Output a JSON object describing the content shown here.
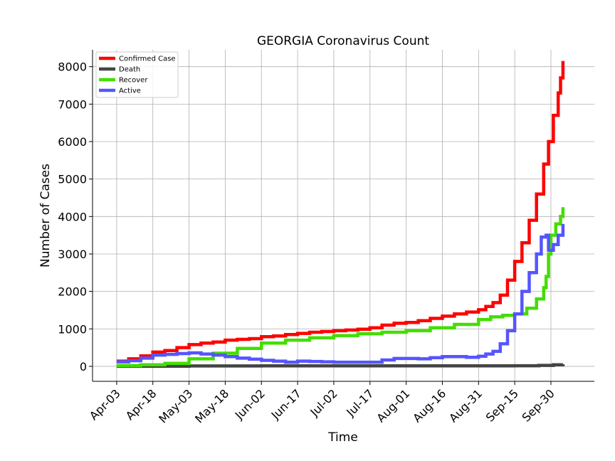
{
  "chart_data": {
    "type": "line",
    "title": "GEORGIA Coronavirus Count",
    "xlabel": "Time",
    "ylabel": "Number of Cases",
    "x_tick_labels": [
      "Apr-03",
      "Apr-18",
      "May-03",
      "May-18",
      "Jun-02",
      "Jun-17",
      "Jul-02",
      "Jul-17",
      "Aug-01",
      "Aug-16",
      "Aug-31",
      "Sep-15",
      "Sep-30"
    ],
    "y_ticks": [
      0,
      1000,
      2000,
      3000,
      4000,
      5000,
      6000,
      7000,
      8000
    ],
    "ylim": [
      -400,
      8450
    ],
    "xlim": [
      "2020-03-24",
      "2020-10-18"
    ],
    "grid": true,
    "legend_position": "top-left",
    "series": [
      {
        "name": "Confirmed Case",
        "color": "#ff0000",
        "points": [
          [
            "2020-04-03",
            140
          ],
          [
            "2020-04-08",
            200
          ],
          [
            "2020-04-13",
            280
          ],
          [
            "2020-04-18",
            380
          ],
          [
            "2020-04-23",
            420
          ],
          [
            "2020-04-28",
            500
          ],
          [
            "2020-05-03",
            580
          ],
          [
            "2020-05-08",
            620
          ],
          [
            "2020-05-13",
            650
          ],
          [
            "2020-05-18",
            700
          ],
          [
            "2020-05-23",
            720
          ],
          [
            "2020-05-28",
            740
          ],
          [
            "2020-06-02",
            790
          ],
          [
            "2020-06-07",
            810
          ],
          [
            "2020-06-12",
            850
          ],
          [
            "2020-06-17",
            880
          ],
          [
            "2020-06-22",
            910
          ],
          [
            "2020-06-27",
            930
          ],
          [
            "2020-07-02",
            950
          ],
          [
            "2020-07-07",
            970
          ],
          [
            "2020-07-12",
            990
          ],
          [
            "2020-07-17",
            1030
          ],
          [
            "2020-07-22",
            1100
          ],
          [
            "2020-07-27",
            1150
          ],
          [
            "2020-08-01",
            1170
          ],
          [
            "2020-08-06",
            1220
          ],
          [
            "2020-08-11",
            1280
          ],
          [
            "2020-08-16",
            1340
          ],
          [
            "2020-08-21",
            1400
          ],
          [
            "2020-08-26",
            1450
          ],
          [
            "2020-08-31",
            1510
          ],
          [
            "2020-09-03",
            1600
          ],
          [
            "2020-09-06",
            1700
          ],
          [
            "2020-09-09",
            1900
          ],
          [
            "2020-09-12",
            2300
          ],
          [
            "2020-09-15",
            2800
          ],
          [
            "2020-09-18",
            3300
          ],
          [
            "2020-09-21",
            3900
          ],
          [
            "2020-09-24",
            4600
          ],
          [
            "2020-09-27",
            5400
          ],
          [
            "2020-09-29",
            6000
          ],
          [
            "2020-10-01",
            6700
          ],
          [
            "2020-10-03",
            7300
          ],
          [
            "2020-10-04",
            7700
          ],
          [
            "2020-10-05",
            8150
          ]
        ]
      },
      {
        "name": "Death",
        "color": "#444444",
        "points": [
          [
            "2020-04-03",
            5
          ],
          [
            "2020-05-03",
            10
          ],
          [
            "2020-06-02",
            12
          ],
          [
            "2020-07-02",
            12
          ],
          [
            "2020-08-01",
            12
          ],
          [
            "2020-08-31",
            12
          ],
          [
            "2020-09-15",
            15
          ],
          [
            "2020-09-25",
            25
          ],
          [
            "2020-10-01",
            40
          ],
          [
            "2020-10-05",
            55
          ]
        ]
      },
      {
        "name": "Recover",
        "color": "#44dd00",
        "points": [
          [
            "2020-04-03",
            20
          ],
          [
            "2020-04-13",
            40
          ],
          [
            "2020-04-23",
            80
          ],
          [
            "2020-05-03",
            200
          ],
          [
            "2020-05-13",
            350
          ],
          [
            "2020-05-23",
            480
          ],
          [
            "2020-06-02",
            620
          ],
          [
            "2020-06-12",
            700
          ],
          [
            "2020-06-22",
            760
          ],
          [
            "2020-07-02",
            820
          ],
          [
            "2020-07-12",
            870
          ],
          [
            "2020-07-22",
            910
          ],
          [
            "2020-08-01",
            950
          ],
          [
            "2020-08-11",
            1030
          ],
          [
            "2020-08-21",
            1120
          ],
          [
            "2020-08-31",
            1250
          ],
          [
            "2020-09-05",
            1320
          ],
          [
            "2020-09-10",
            1360
          ],
          [
            "2020-09-15",
            1400
          ],
          [
            "2020-09-20",
            1550
          ],
          [
            "2020-09-24",
            1800
          ],
          [
            "2020-09-27",
            2100
          ],
          [
            "2020-09-28",
            2400
          ],
          [
            "2020-09-29",
            3000
          ],
          [
            "2020-09-30",
            3500
          ],
          [
            "2020-10-02",
            3800
          ],
          [
            "2020-10-04",
            4000
          ],
          [
            "2020-10-05",
            4250
          ]
        ]
      },
      {
        "name": "Active",
        "color": "#5555ff",
        "points": [
          [
            "2020-04-03",
            120
          ],
          [
            "2020-04-08",
            150
          ],
          [
            "2020-04-13",
            220
          ],
          [
            "2020-04-18",
            300
          ],
          [
            "2020-04-23",
            320
          ],
          [
            "2020-04-28",
            340
          ],
          [
            "2020-05-03",
            360
          ],
          [
            "2020-05-08",
            330
          ],
          [
            "2020-05-13",
            300
          ],
          [
            "2020-05-18",
            260
          ],
          [
            "2020-05-23",
            220
          ],
          [
            "2020-05-28",
            190
          ],
          [
            "2020-06-02",
            160
          ],
          [
            "2020-06-07",
            140
          ],
          [
            "2020-06-12",
            110
          ],
          [
            "2020-06-17",
            140
          ],
          [
            "2020-06-22",
            130
          ],
          [
            "2020-06-27",
            120
          ],
          [
            "2020-07-02",
            110
          ],
          [
            "2020-07-07",
            110
          ],
          [
            "2020-07-12",
            110
          ],
          [
            "2020-07-17",
            110
          ],
          [
            "2020-07-22",
            170
          ],
          [
            "2020-07-27",
            210
          ],
          [
            "2020-08-01",
            210
          ],
          [
            "2020-08-06",
            200
          ],
          [
            "2020-08-11",
            230
          ],
          [
            "2020-08-16",
            260
          ],
          [
            "2020-08-21",
            260
          ],
          [
            "2020-08-26",
            240
          ],
          [
            "2020-08-31",
            270
          ],
          [
            "2020-09-03",
            330
          ],
          [
            "2020-09-06",
            400
          ],
          [
            "2020-09-09",
            600
          ],
          [
            "2020-09-12",
            950
          ],
          [
            "2020-09-15",
            1400
          ],
          [
            "2020-09-18",
            2000
          ],
          [
            "2020-09-21",
            2500
          ],
          [
            "2020-09-24",
            3000
          ],
          [
            "2020-09-26",
            3450
          ],
          [
            "2020-09-28",
            3500
          ],
          [
            "2020-09-29",
            3100
          ],
          [
            "2020-10-01",
            3250
          ],
          [
            "2020-10-03",
            3500
          ],
          [
            "2020-10-05",
            3800
          ]
        ]
      }
    ]
  }
}
